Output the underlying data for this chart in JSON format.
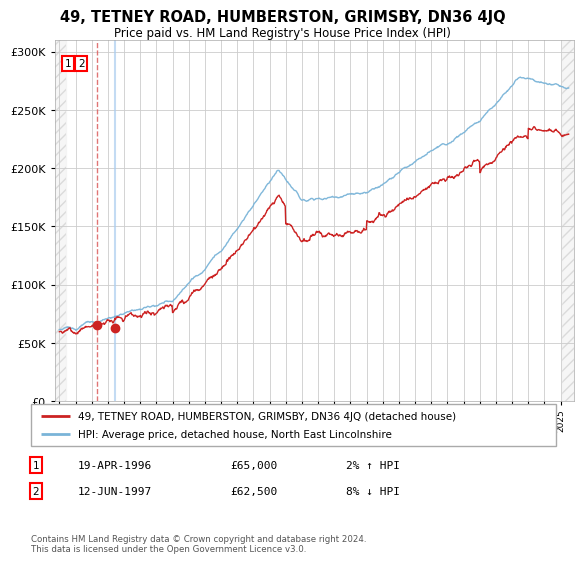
{
  "title": "49, TETNEY ROAD, HUMBERSTON, GRIMSBY, DN36 4JQ",
  "subtitle": "Price paid vs. HM Land Registry's House Price Index (HPI)",
  "legend_line1": "49, TETNEY ROAD, HUMBERSTON, GRIMSBY, DN36 4JQ (detached house)",
  "legend_line2": "HPI: Average price, detached house, North East Lincolnshire",
  "transaction1_date": "19-APR-1996",
  "transaction1_price": "£65,000",
  "transaction1_hpi": "2% ↑ HPI",
  "transaction2_date": "12-JUN-1997",
  "transaction2_price": "£62,500",
  "transaction2_hpi": "8% ↓ HPI",
  "footer1": "Contains HM Land Registry data © Crown copyright and database right 2024.",
  "footer2": "This data is licensed under the Open Government Licence v3.0.",
  "hpi_color": "#7ab4d8",
  "price_color": "#cc2222",
  "marker_color": "#cc2222",
  "vline1_color": "#dd6666",
  "vline2_color": "#aaccee",
  "grid_color": "#cccccc",
  "ylim": [
    0,
    310000
  ],
  "yticks": [
    0,
    50000,
    100000,
    150000,
    200000,
    250000,
    300000
  ],
  "transaction1_x": 1996.3,
  "transaction2_x": 1997.45,
  "transaction1_y": 65000,
  "transaction2_y": 62500,
  "xmin": 1993.7,
  "xmax": 2025.8
}
